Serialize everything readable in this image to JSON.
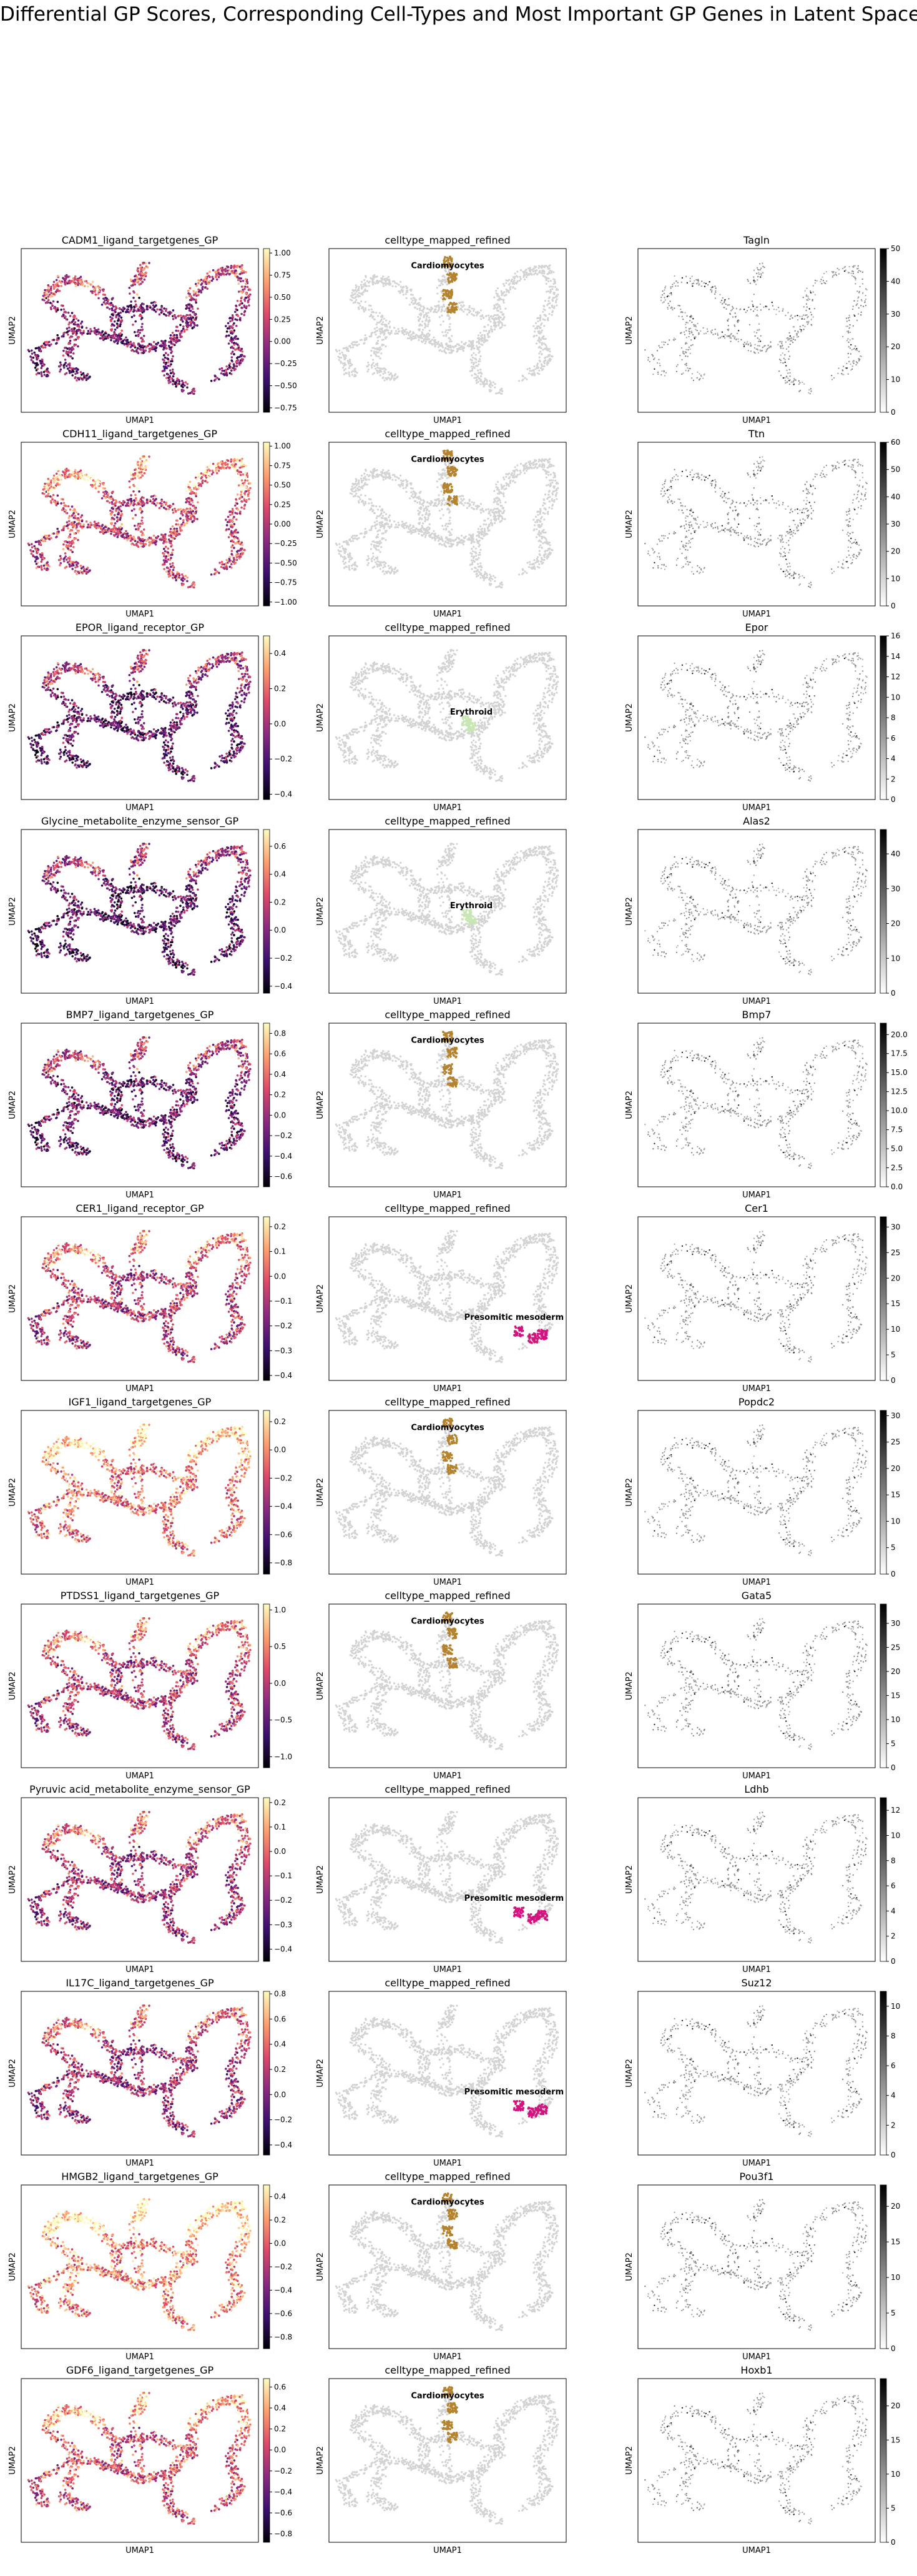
{
  "figure": {
    "title": "Differential GP Scores, Corresponding Cell-Types and Most Important GP Genes in Latent Space",
    "xlabel": "UMAP1",
    "ylabel": "UMAP2"
  },
  "colors": {
    "background_cells": "#d3d3d3",
    "cardiomyocytes": "#b5832d",
    "erythroid": "#c8e6b4",
    "presomitic_mesoderm": "#d4137f",
    "magma_stops": [
      "#000004",
      "#3b0f70",
      "#8c2981",
      "#de4968",
      "#fe9f6d",
      "#fcfdbf"
    ],
    "greys_stops": [
      "#ffffff",
      "#000000"
    ]
  },
  "chart_data": [
    {
      "type": "scatter",
      "title": "CADM1_ligand_targetgenes_GP",
      "colorbar": {
        "range": [
          -0.8,
          1.05
        ],
        "ticks": [
          1.0,
          0.75,
          0.5,
          0.25,
          0.0,
          -0.25,
          -0.5,
          -0.75
        ],
        "labels": [
          "1.00",
          "0.75",
          "0.50",
          "0.25",
          "0.00",
          "−0.25",
          "−0.50",
          "−0.75"
        ]
      },
      "level": 0.35
    },
    {
      "type": "scatter",
      "title": "celltype_mapped_refined",
      "label": "Cardiomyocytes",
      "group": "cardiomyocytes"
    },
    {
      "type": "scatter",
      "title": "Tagln",
      "colorbar": {
        "range": [
          0,
          50
        ],
        "ticks": [
          50,
          40,
          30,
          20,
          10,
          0
        ],
        "labels": [
          "50",
          "40",
          "30",
          "20",
          "10",
          "0"
        ]
      }
    },
    {
      "type": "scatter",
      "title": "CDH11_ligand_targetgenes_GP",
      "colorbar": {
        "range": [
          -1.05,
          1.05
        ],
        "ticks": [
          1.0,
          0.75,
          0.5,
          0.25,
          0.0,
          -0.25,
          -0.5,
          -0.75,
          -1.0
        ],
        "labels": [
          "1.00",
          "0.75",
          "0.50",
          "0.25",
          "0.00",
          "−0.25",
          "−0.50",
          "−0.75",
          "−1.00"
        ]
      },
      "level": 0.55
    },
    {
      "type": "scatter",
      "title": "celltype_mapped_refined",
      "label": "Cardiomyocytes",
      "group": "cardiomyocytes"
    },
    {
      "type": "scatter",
      "title": "Ttn",
      "colorbar": {
        "range": [
          0,
          60
        ],
        "ticks": [
          60,
          50,
          40,
          30,
          20,
          10,
          0
        ],
        "labels": [
          "60",
          "50",
          "40",
          "30",
          "20",
          "10",
          "0"
        ]
      }
    },
    {
      "type": "scatter",
      "title": "EPOR_ligand_receptor_GP",
      "colorbar": {
        "range": [
          -0.43,
          0.5
        ],
        "ticks": [
          0.4,
          0.2,
          0.0,
          -0.2,
          -0.4
        ],
        "labels": [
          "0.4",
          "0.2",
          "0.0",
          "−0.2",
          "−0.4"
        ]
      },
      "level": 0.28
    },
    {
      "type": "scatter",
      "title": "celltype_mapped_refined",
      "label": "Erythroid",
      "group": "erythroid"
    },
    {
      "type": "scatter",
      "title": "Epor",
      "colorbar": {
        "range": [
          0,
          16
        ],
        "ticks": [
          16,
          14,
          12,
          10,
          8,
          6,
          4,
          2,
          0
        ],
        "labels": [
          "16",
          "14",
          "12",
          "10",
          "8",
          "6",
          "4",
          "2",
          "0"
        ]
      }
    },
    {
      "type": "scatter",
      "title": "Glycine_metabolite_enzyme_sensor_GP",
      "colorbar": {
        "range": [
          -0.45,
          0.72
        ],
        "ticks": [
          0.6,
          0.4,
          0.2,
          0.0,
          -0.2,
          -0.4
        ],
        "labels": [
          "0.6",
          "0.4",
          "0.2",
          "0.0",
          "−0.2",
          "−0.4"
        ]
      },
      "level": 0.25
    },
    {
      "type": "scatter",
      "title": "celltype_mapped_refined",
      "label": "Erythroid",
      "group": "erythroid"
    },
    {
      "type": "scatter",
      "title": "Alas2",
      "colorbar": {
        "range": [
          0,
          47
        ],
        "ticks": [
          40,
          30,
          20,
          10,
          0
        ],
        "labels": [
          "40",
          "30",
          "20",
          "10",
          "0"
        ]
      }
    },
    {
      "type": "scatter",
      "title": "BMP7_ligand_targetgenes_GP",
      "colorbar": {
        "range": [
          -0.7,
          0.9
        ],
        "ticks": [
          0.8,
          0.6,
          0.4,
          0.2,
          0.0,
          -0.2,
          -0.4,
          -0.6
        ],
        "labels": [
          "0.8",
          "0.6",
          "0.4",
          "0.2",
          "0.0",
          "−0.2",
          "−0.4",
          "−0.6"
        ]
      },
      "level": 0.3
    },
    {
      "type": "scatter",
      "title": "celltype_mapped_refined",
      "label": "Cardiomyocytes",
      "group": "cardiomyocytes"
    },
    {
      "type": "scatter",
      "title": "Bmp7",
      "colorbar": {
        "range": [
          0,
          21.5
        ],
        "ticks": [
          20,
          17.5,
          15,
          12.5,
          10,
          7.5,
          5,
          2.5,
          0
        ],
        "labels": [
          "20.0",
          "17.5",
          "15.0",
          "12.5",
          "10.0",
          "7.5",
          "5.0",
          "2.5",
          "0.0"
        ]
      }
    },
    {
      "type": "scatter",
      "title": "CER1_ligand_receptor_GP",
      "colorbar": {
        "range": [
          -0.42,
          0.24
        ],
        "ticks": [
          0.2,
          0.1,
          0.0,
          -0.1,
          -0.2,
          -0.3,
          -0.4
        ],
        "labels": [
          "0.2",
          "0.1",
          "0.0",
          "−0.1",
          "−0.2",
          "−0.3",
          "−0.4"
        ]
      },
      "level": 0.5
    },
    {
      "type": "scatter",
      "title": "celltype_mapped_refined",
      "label": "Presomitic mesoderm",
      "group": "presomitic_mesoderm"
    },
    {
      "type": "scatter",
      "title": "Cer1",
      "colorbar": {
        "range": [
          0,
          32
        ],
        "ticks": [
          30,
          25,
          20,
          15,
          10,
          5,
          0
        ],
        "labels": [
          "30",
          "25",
          "20",
          "15",
          "10",
          "5",
          "0"
        ]
      }
    },
    {
      "type": "scatter",
      "title": "IGF1_ligand_targetgenes_GP",
      "colorbar": {
        "range": [
          -0.88,
          0.28
        ],
        "ticks": [
          0.2,
          0.0,
          -0.2,
          -0.4,
          -0.6,
          -0.8
        ],
        "labels": [
          "0.2",
          "0.0",
          "−0.2",
          "−0.4",
          "−0.6",
          "−0.8"
        ]
      },
      "level": 0.7
    },
    {
      "type": "scatter",
      "title": "celltype_mapped_refined",
      "label": "Cardiomyocytes",
      "group": "cardiomyocytes"
    },
    {
      "type": "scatter",
      "title": "Popdc2",
      "colorbar": {
        "range": [
          0,
          31
        ],
        "ticks": [
          30,
          25,
          20,
          15,
          10,
          5,
          0
        ],
        "labels": [
          "30",
          "25",
          "20",
          "15",
          "10",
          "5",
          "0"
        ]
      }
    },
    {
      "type": "scatter",
      "title": "PTDSS1_ligand_targetgenes_GP",
      "colorbar": {
        "range": [
          -1.15,
          1.08
        ],
        "ticks": [
          1.0,
          0.5,
          0.0,
          -0.5,
          -1.0
        ],
        "labels": [
          "1.0",
          "0.5",
          "0.0",
          "−0.5",
          "−1.0"
        ]
      },
      "level": 0.5
    },
    {
      "type": "scatter",
      "title": "celltype_mapped_refined",
      "label": "Cardiomyocytes",
      "group": "cardiomyocytes"
    },
    {
      "type": "scatter",
      "title": "Gata5",
      "colorbar": {
        "range": [
          0,
          34
        ],
        "ticks": [
          30,
          25,
          20,
          15,
          10,
          5,
          0
        ],
        "labels": [
          "30",
          "25",
          "20",
          "15",
          "10",
          "5",
          "0"
        ]
      }
    },
    {
      "type": "scatter",
      "title": "Pyruvic acid_metabolite_enzyme_sensor_GP",
      "colorbar": {
        "range": [
          -0.45,
          0.22
        ],
        "ticks": [
          0.2,
          0.1,
          0.0,
          -0.1,
          -0.2,
          -0.3,
          -0.4
        ],
        "labels": [
          "0.2",
          "0.1",
          "0.0",
          "−0.1",
          "−0.2",
          "−0.3",
          "−0.4"
        ]
      },
      "level": 0.45
    },
    {
      "type": "scatter",
      "title": "celltype_mapped_refined",
      "label": "Presomitic mesoderm",
      "group": "presomitic_mesoderm"
    },
    {
      "type": "scatter",
      "title": "Ldhb",
      "colorbar": {
        "range": [
          0,
          13
        ],
        "ticks": [
          12,
          10,
          8,
          6,
          4,
          2,
          0
        ],
        "labels": [
          "12",
          "10",
          "8",
          "6",
          "4",
          "2",
          "0"
        ]
      }
    },
    {
      "type": "scatter",
      "title": "IL17C_ligand_targetgenes_GP",
      "colorbar": {
        "range": [
          -0.48,
          0.82
        ],
        "ticks": [
          0.8,
          0.6,
          0.4,
          0.2,
          0.0,
          -0.2,
          -0.4
        ],
        "labels": [
          "0.8",
          "0.6",
          "0.4",
          "0.2",
          "0.0",
          "−0.2",
          "−0.4"
        ]
      },
      "level": 0.45
    },
    {
      "type": "scatter",
      "title": "celltype_mapped_refined",
      "label": "Presomitic mesoderm",
      "group": "presomitic_mesoderm"
    },
    {
      "type": "scatter",
      "title": "Suz12",
      "colorbar": {
        "range": [
          0,
          11
        ],
        "ticks": [
          10,
          8,
          6,
          4,
          2,
          0
        ],
        "labels": [
          "10",
          "8",
          "6",
          "4",
          "2",
          "0"
        ]
      }
    },
    {
      "type": "scatter",
      "title": "HMGB2_ligand_targetgenes_GP",
      "colorbar": {
        "range": [
          -0.9,
          0.5
        ],
        "ticks": [
          0.4,
          0.2,
          0.0,
          -0.2,
          -0.4,
          -0.6,
          -0.8
        ],
        "labels": [
          "0.4",
          "0.2",
          "0.0",
          "−0.2",
          "−0.4",
          "−0.6",
          "−0.8"
        ]
      },
      "level": 0.75
    },
    {
      "type": "scatter",
      "title": "celltype_mapped_refined",
      "label": "Cardiomyocytes",
      "group": "cardiomyocytes"
    },
    {
      "type": "scatter",
      "title": "Pou3f1",
      "colorbar": {
        "range": [
          0,
          23
        ],
        "ticks": [
          20,
          15,
          10,
          5,
          0
        ],
        "labels": [
          "20",
          "15",
          "10",
          "5",
          "0"
        ]
      }
    },
    {
      "type": "scatter",
      "title": "GDF6_ligand_targetgenes_GP",
      "colorbar": {
        "range": [
          -0.88,
          0.68
        ],
        "ticks": [
          0.6,
          0.4,
          0.2,
          0.0,
          -0.2,
          -0.4,
          -0.6,
          -0.8
        ],
        "labels": [
          "0.6",
          "0.4",
          "0.2",
          "0.0",
          "−0.2",
          "−0.4",
          "−0.6",
          "−0.8"
        ]
      },
      "level": 0.6
    },
    {
      "type": "scatter",
      "title": "celltype_mapped_refined",
      "label": "Cardiomyocytes",
      "group": "cardiomyocytes"
    },
    {
      "type": "scatter",
      "title": "Hoxb1",
      "colorbar": {
        "range": [
          0,
          24
        ],
        "ticks": [
          20,
          15,
          10,
          5,
          0
        ],
        "labels": [
          "20",
          "15",
          "10",
          "5",
          "0"
        ]
      }
    }
  ]
}
